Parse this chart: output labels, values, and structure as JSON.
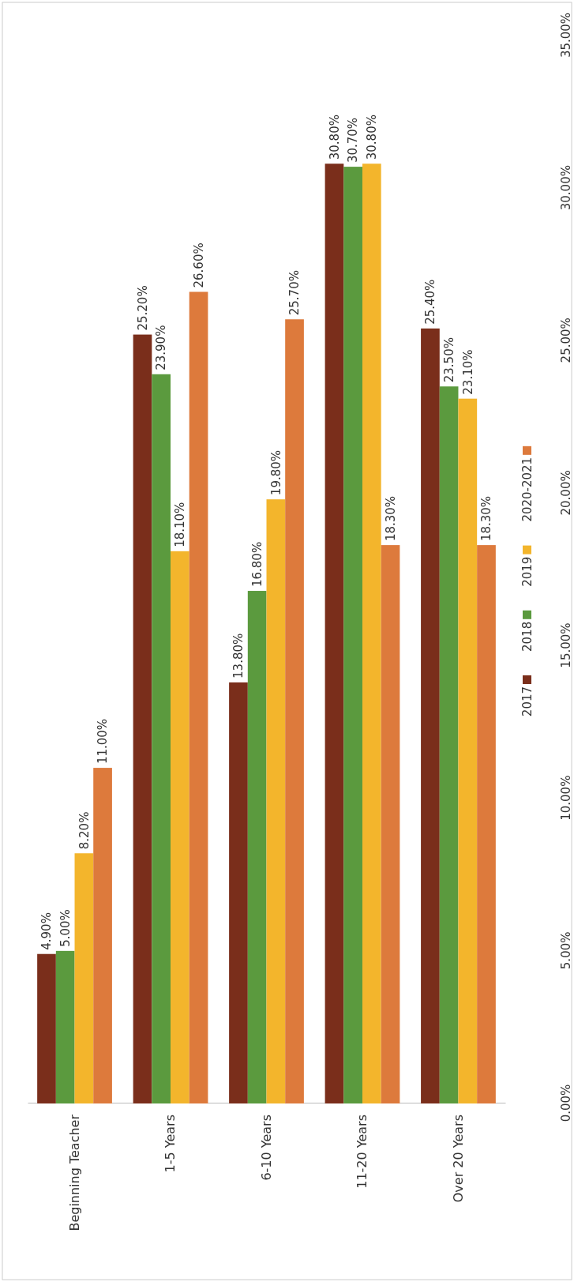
{
  "chart_data": {
    "type": "bar",
    "categories": [
      "Beginning Teacher",
      "1-5 Years",
      "6-10 Years",
      "11-20 Years",
      "Over 20 Years"
    ],
    "series": [
      {
        "name": "2017",
        "color": "#7a2e1b",
        "values": [
          4.9,
          25.2,
          13.8,
          30.8,
          25.4
        ],
        "value_labels": [
          "4.90%",
          "25.20%",
          "13.80%",
          "30.80%",
          "25.40%"
        ]
      },
      {
        "name": "2018",
        "color": "#5b9a3e",
        "values": [
          5.0,
          23.9,
          16.8,
          30.7,
          23.5
        ],
        "value_labels": [
          "5.00%",
          "23.90%",
          "16.80%",
          "30.70%",
          "23.50%"
        ]
      },
      {
        "name": "2019",
        "color": "#f3b52c",
        "values": [
          8.2,
          18.1,
          19.8,
          30.8,
          23.1
        ],
        "value_labels": [
          "8.20%",
          "18.10%",
          "19.80%",
          "30.80%",
          "23.10%"
        ]
      },
      {
        "name": "2020-2021",
        "color": "#dd7a3c",
        "values": [
          11.0,
          26.6,
          25.7,
          18.3,
          18.3
        ],
        "value_labels": [
          "11.00%",
          "26.60%",
          "25.70%",
          "18.30%",
          "18.30%"
        ]
      }
    ],
    "ylim": [
      0,
      35
    ],
    "yticks": [
      {
        "value": 0,
        "label": "0.00%"
      },
      {
        "value": 5,
        "label": "5.00%"
      },
      {
        "value": 10,
        "label": "10.00%"
      },
      {
        "value": 15,
        "label": "15.00%"
      },
      {
        "value": 20,
        "label": "20.00%"
      },
      {
        "value": 25,
        "label": "25.00%"
      },
      {
        "value": 30,
        "label": "30.00%"
      },
      {
        "value": 35,
        "label": "35.00%"
      }
    ],
    "grid": false,
    "legend": "right"
  }
}
